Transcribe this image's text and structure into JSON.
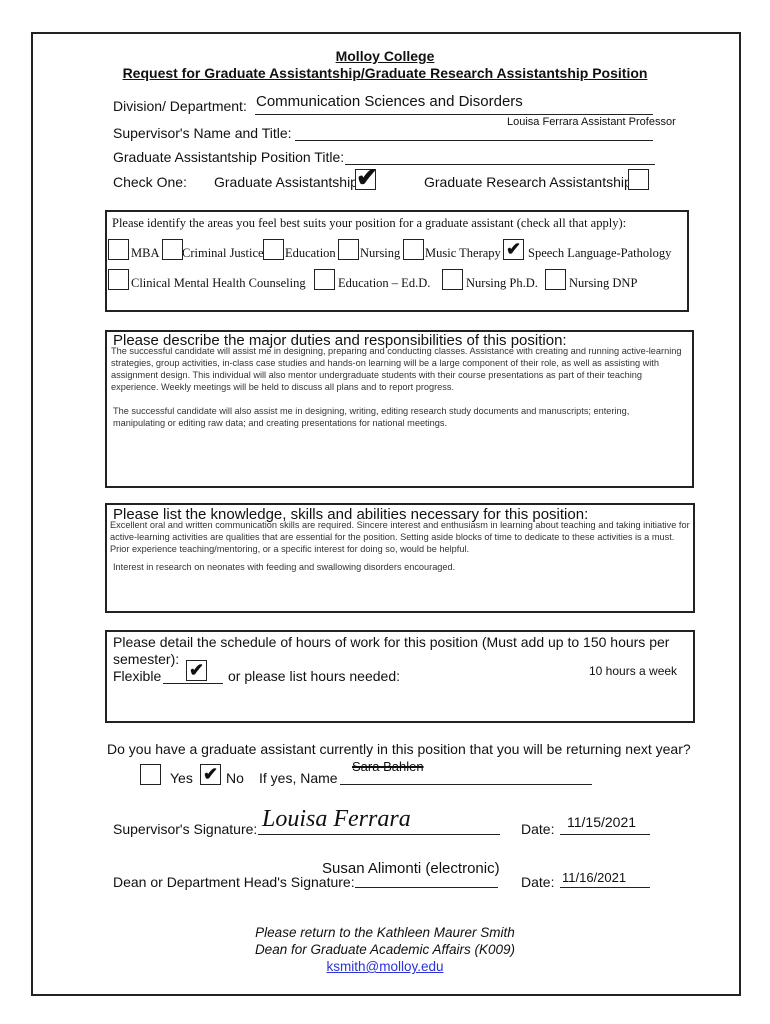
{
  "header": {
    "college": "Molloy College",
    "form_title": "Request for Graduate Assistantship/Graduate Research Assistantship Position"
  },
  "fields": {
    "division_label": "Division/ Department:",
    "division_value": "Communication Sciences and Disorders",
    "supervisor_label": "Supervisor's Name and Title:",
    "supervisor_value": "Louisa Ferrara Assistant Professor",
    "position_title_label": "Graduate Assistantship Position Title:",
    "check_one_label": "Check One:",
    "ga_label": "Graduate Assistantship",
    "gra_label": "Graduate Research Assistantship",
    "ga_checked": true,
    "gra_checked": false
  },
  "areas": {
    "prompt": "Please identify the areas you feel best suits your position for a graduate assistant (check all that apply):",
    "items": [
      {
        "label": "MBA",
        "checked": false
      },
      {
        "label": "Criminal Justice",
        "checked": false
      },
      {
        "label": "Education",
        "checked": false
      },
      {
        "label": "Nursing",
        "checked": false
      },
      {
        "label": "Music Therapy",
        "checked": false
      },
      {
        "label": "Speech Language-Pathology",
        "checked": true
      },
      {
        "label": "Clinical Mental Health Counseling",
        "checked": false
      },
      {
        "label": "Education – Ed.D.",
        "checked": false
      },
      {
        "label": "Nursing Ph.D.",
        "checked": false
      },
      {
        "label": "Nursing DNP",
        "checked": false
      }
    ],
    "check_glyph": "✔"
  },
  "duties": {
    "heading": "Please describe the major duties and responsibilities of this position:",
    "p1": "The successful candidate will assist me in designing, preparing and conducting classes. Assistance with creating and running active-learning strategies, group activities, in-class case studies and hands-on learning will be a large component of their role, as well as assisting with assignment design. This individual will also mentor undergraduate students with their course presentations as part of their teaching experience. Weekly meetings will be held to discuss all plans and to report progress.",
    "p2": "The successful candidate will also assist me in designing, writing, editing research study documents and manuscripts; entering, manipulating or editing raw data; and creating presentations for national meetings."
  },
  "skills": {
    "heading": "Please list the knowledge, skills and abilities necessary for this position:",
    "p1": "Excellent oral and written communication skills are required. Sincere interest and enthusiasm in learning about teaching and taking initiative for active-learning activities are qualities that are essential for the position. Setting aside blocks of time to dedicate to these activities is a must. Prior experience teaching/mentoring, or a specific interest for doing so, would be helpful.",
    "p2": "Interest in research on neonates with feeding and swallowing disorders encouraged."
  },
  "schedule": {
    "heading": "Please detail the schedule of hours of work for this position (Must add up to 150 hours per semester):",
    "flexible_label": "Flexible",
    "flexible_checked": true,
    "hours_label": "or please list hours needed:",
    "hours_value": "10 hours a week"
  },
  "returning": {
    "question": "Do you have a graduate assistant currently in this position that you will be returning next year?",
    "yes_label": "Yes",
    "no_label": "No",
    "yes_checked": false,
    "no_checked": true,
    "name_label": "If yes, Name",
    "name_value": "Sara Bahlen"
  },
  "signatures": {
    "supervisor_label": "Supervisor's Signature:",
    "supervisor_sig": "Louisa Ferrara",
    "date_label": "Date:",
    "supervisor_date": "11/15/2021",
    "dean_label": "Dean or Department Head's Signature:",
    "dean_value": "Susan Alimonti (electronic)",
    "dean_date": "11/16/2021"
  },
  "footer": {
    "line1": "Please return to the Kathleen Maurer Smith",
    "line2": "Dean for Graduate Academic Affairs (K009)",
    "email": "ksmith@molloy.edu"
  }
}
